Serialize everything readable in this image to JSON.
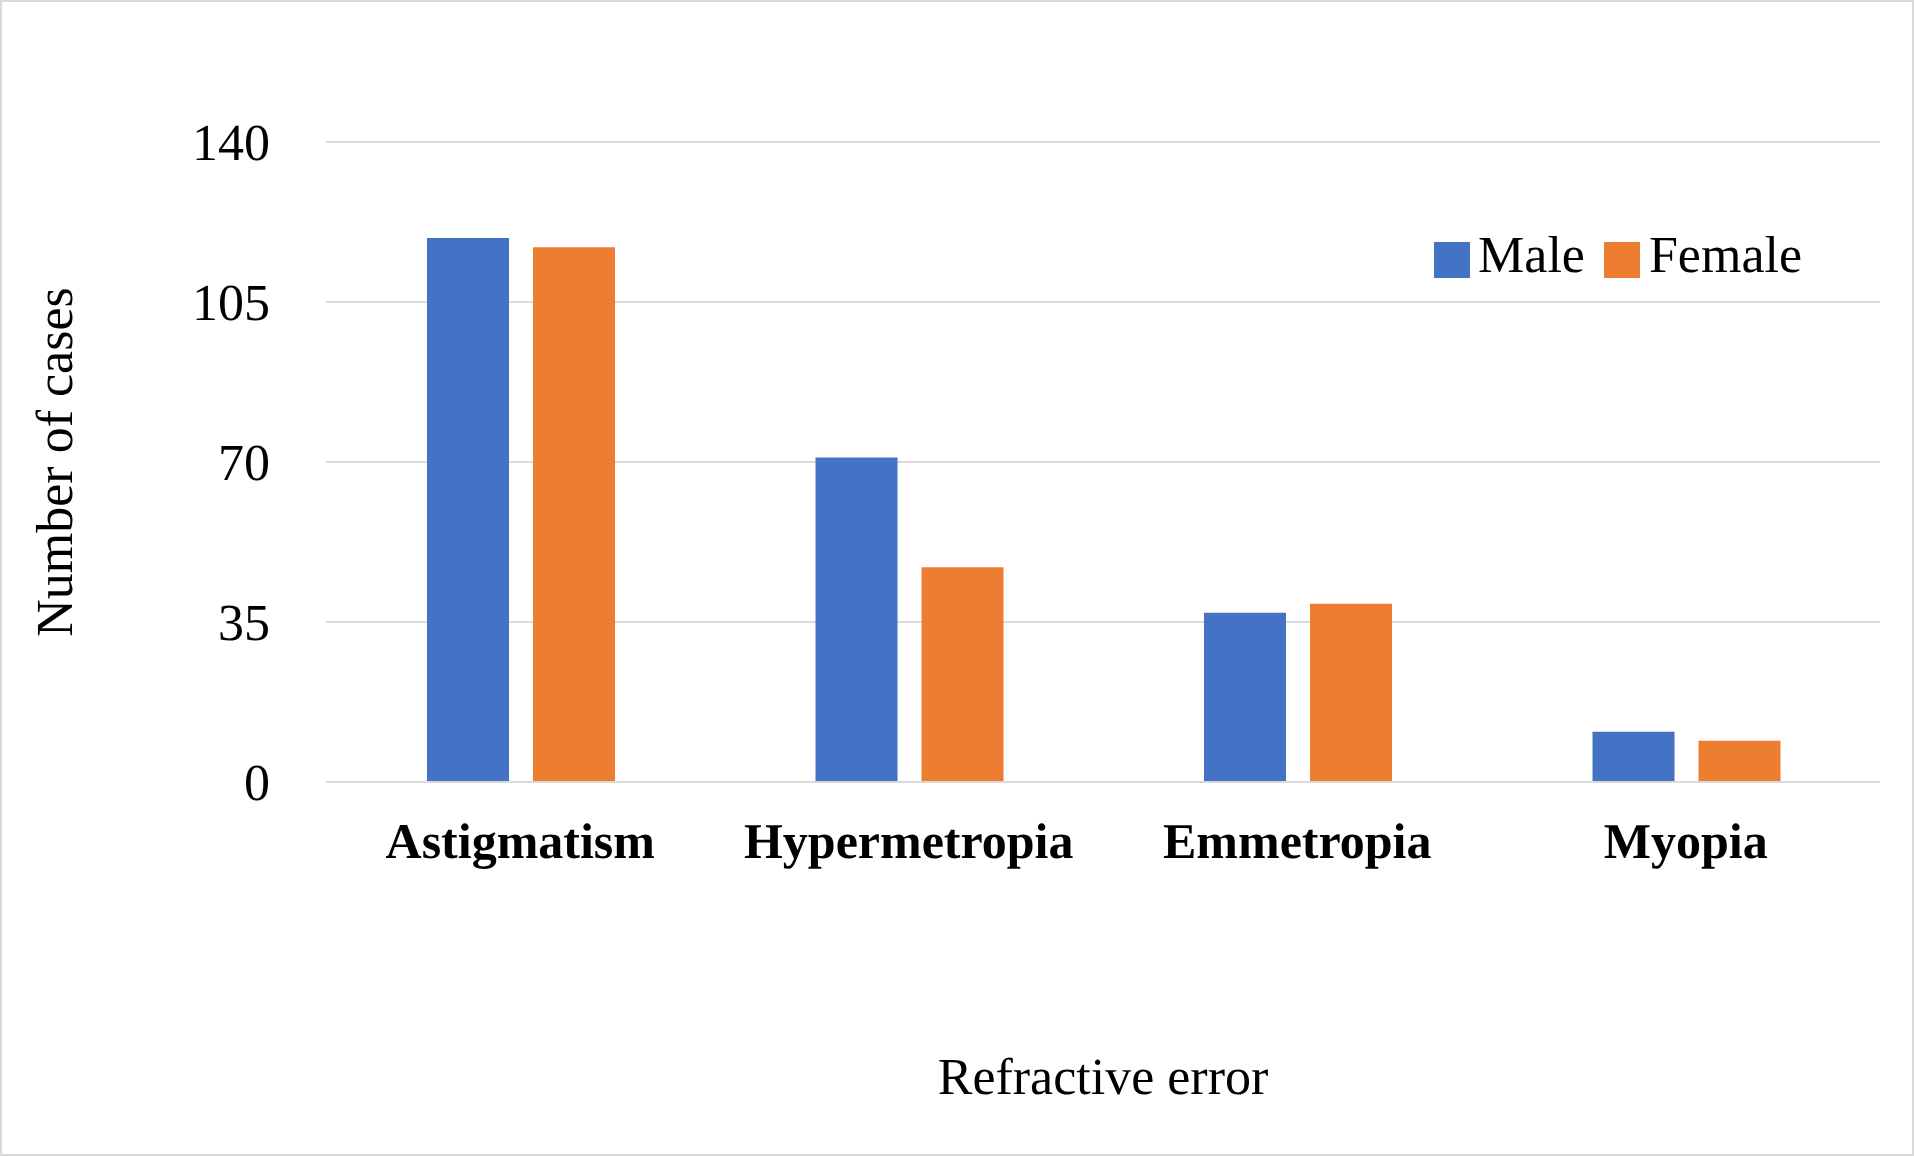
{
  "chart_data": {
    "type": "bar",
    "xlabel": "Refractive error",
    "ylabel": "Number of cases",
    "categories": [
      "Astigmatism",
      "Hypermetropia",
      "Emmetropia",
      "Myopia"
    ],
    "series": [
      {
        "name": "Male",
        "color": "#4472c4",
        "values": [
          119,
          71,
          37,
          11
        ]
      },
      {
        "name": "Female",
        "color": "#ed7d31",
        "values": [
          117,
          47,
          39,
          9
        ]
      }
    ],
    "ylim": [
      0,
      140
    ],
    "yticks": [
      0,
      35,
      70,
      105,
      140
    ],
    "grid": "y",
    "legend": "top right"
  }
}
